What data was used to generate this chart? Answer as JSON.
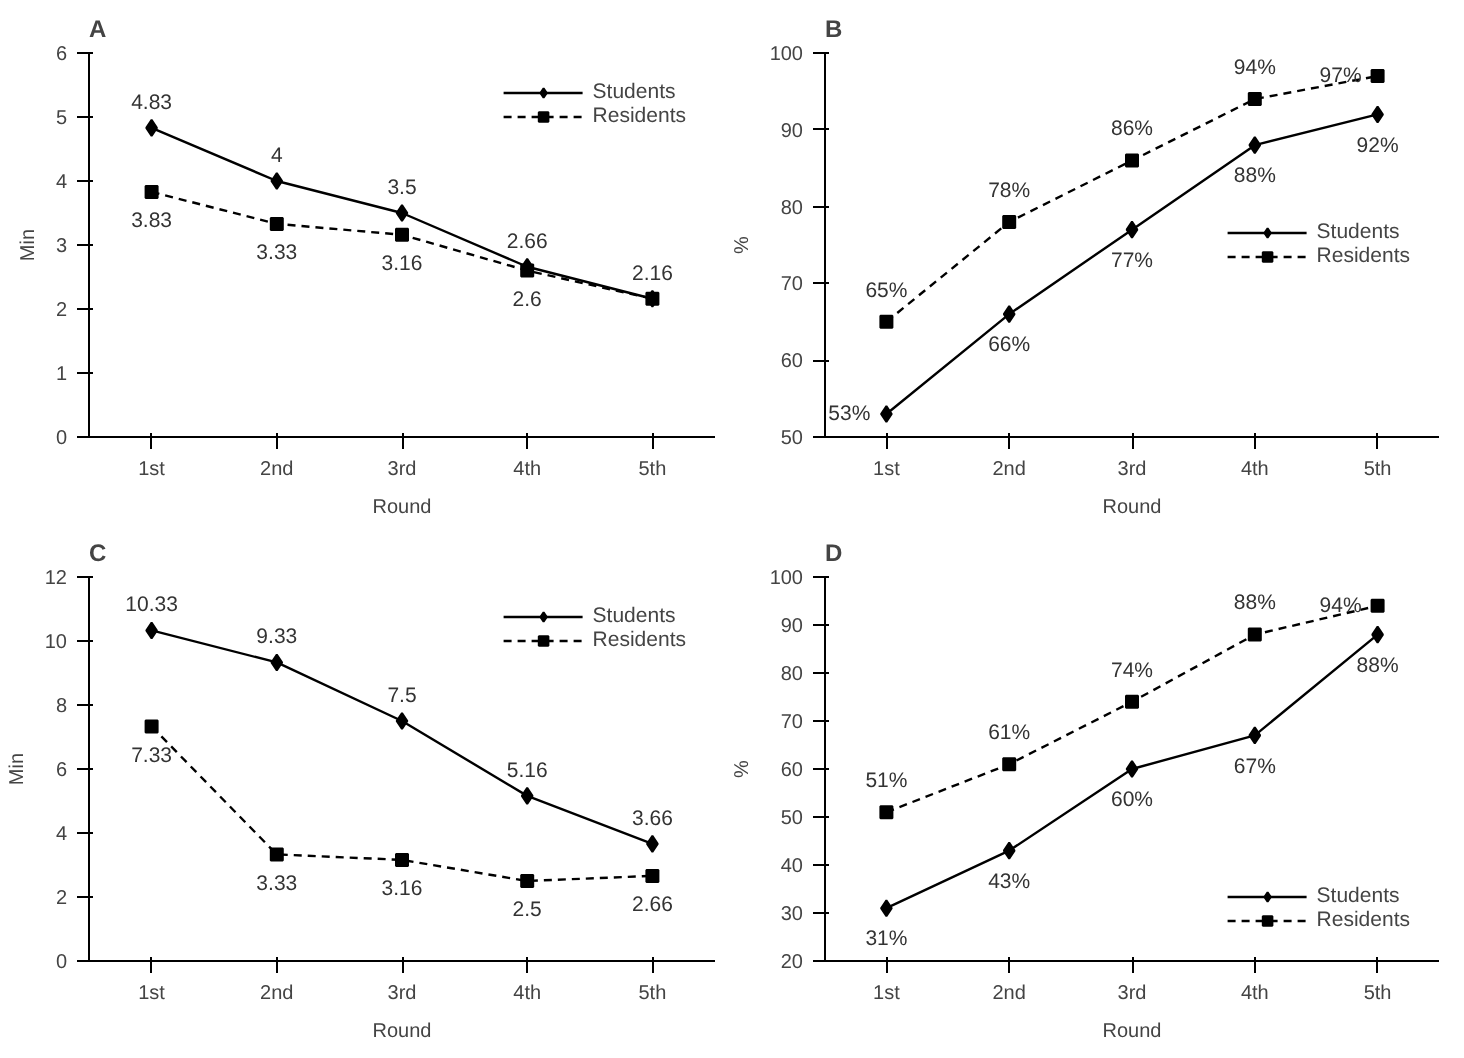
{
  "chart_data": [
    {
      "type": "line",
      "title": "A",
      "xlabel": "Round",
      "ylabel": "Min",
      "categories": [
        "1st",
        "2nd",
        "3rd",
        "4th",
        "5th"
      ],
      "ylim": [
        0,
        6
      ],
      "yticks": [
        0,
        1,
        2,
        3,
        4,
        5,
        6
      ],
      "grid": false,
      "legend": "top right",
      "series": [
        {
          "name": "Students",
          "color": "#000000",
          "marker": "diamond",
          "line_style": "solid",
          "values": [
            4.83,
            4,
            3.5,
            2.66,
            2.16
          ],
          "value_labels": [
            "4.83",
            "4",
            "3.5",
            "2.66",
            "2.16"
          ]
        },
        {
          "name": "Residents",
          "color": "#000000",
          "marker": "square",
          "line_style": "dashed",
          "values": [
            3.83,
            3.33,
            3.16,
            2.6,
            2.16
          ],
          "value_labels": [
            "3.83",
            "3.33",
            "3.16",
            "2.6",
            null
          ]
        }
      ]
    },
    {
      "type": "line",
      "title": "B",
      "xlabel": "Round",
      "ylabel": "%",
      "categories": [
        "1st",
        "2nd",
        "3rd",
        "4th",
        "5th"
      ],
      "ylim": [
        50,
        100
      ],
      "yticks": [
        50,
        60,
        70,
        80,
        90,
        100
      ],
      "grid": false,
      "legend": "right",
      "series": [
        {
          "name": "Students",
          "color": "#000000",
          "marker": "diamond",
          "line_style": "solid",
          "values": [
            53,
            66,
            77,
            88,
            92
          ],
          "value_labels": [
            "53%",
            "66%",
            "77%",
            "88%",
            "92%"
          ]
        },
        {
          "name": "Residents",
          "color": "#000000",
          "marker": "square",
          "line_style": "dashed",
          "values": [
            65,
            78,
            86,
            94,
            97
          ],
          "value_labels": [
            "65%",
            "78%",
            "86%",
            "94%",
            "97%"
          ]
        }
      ]
    },
    {
      "type": "line",
      "title": "C",
      "xlabel": "Round",
      "ylabel": "Min",
      "categories": [
        "1st",
        "2nd",
        "3rd",
        "4th",
        "5th"
      ],
      "ylim": [
        0,
        12
      ],
      "yticks": [
        0,
        2,
        4,
        6,
        8,
        10,
        12
      ],
      "grid": false,
      "legend": "top right",
      "series": [
        {
          "name": "Students",
          "color": "#000000",
          "marker": "diamond",
          "line_style": "solid",
          "values": [
            10.33,
            9.33,
            7.5,
            5.16,
            3.66
          ],
          "value_labels": [
            "10.33",
            "9.33",
            "7.5",
            "5.16",
            "3.66"
          ]
        },
        {
          "name": "Residents",
          "color": "#000000",
          "marker": "square",
          "line_style": "dashed",
          "values": [
            7.33,
            3.33,
            3.16,
            2.5,
            2.66
          ],
          "value_labels": [
            "7.33",
            "3.33",
            "3.16",
            "2.5",
            "2.66"
          ]
        }
      ]
    },
    {
      "type": "line",
      "title": "D",
      "xlabel": "Round",
      "ylabel": "%",
      "categories": [
        "1st",
        "2nd",
        "3rd",
        "4th",
        "5th"
      ],
      "ylim": [
        20,
        100
      ],
      "yticks": [
        20,
        30,
        40,
        50,
        60,
        70,
        80,
        90,
        100
      ],
      "grid": false,
      "legend": "bottom right",
      "series": [
        {
          "name": "Students",
          "color": "#000000",
          "marker": "diamond",
          "line_style": "solid",
          "values": [
            31,
            43,
            60,
            67,
            88
          ],
          "value_labels": [
            "31%",
            "43%",
            "60%",
            "67%",
            "88%"
          ]
        },
        {
          "name": "Residents",
          "color": "#000000",
          "marker": "square",
          "line_style": "dashed",
          "values": [
            51,
            61,
            74,
            88,
            94
          ],
          "value_labels": [
            "51%",
            "61%",
            "74%",
            "88%",
            "94%"
          ]
        }
      ]
    }
  ]
}
